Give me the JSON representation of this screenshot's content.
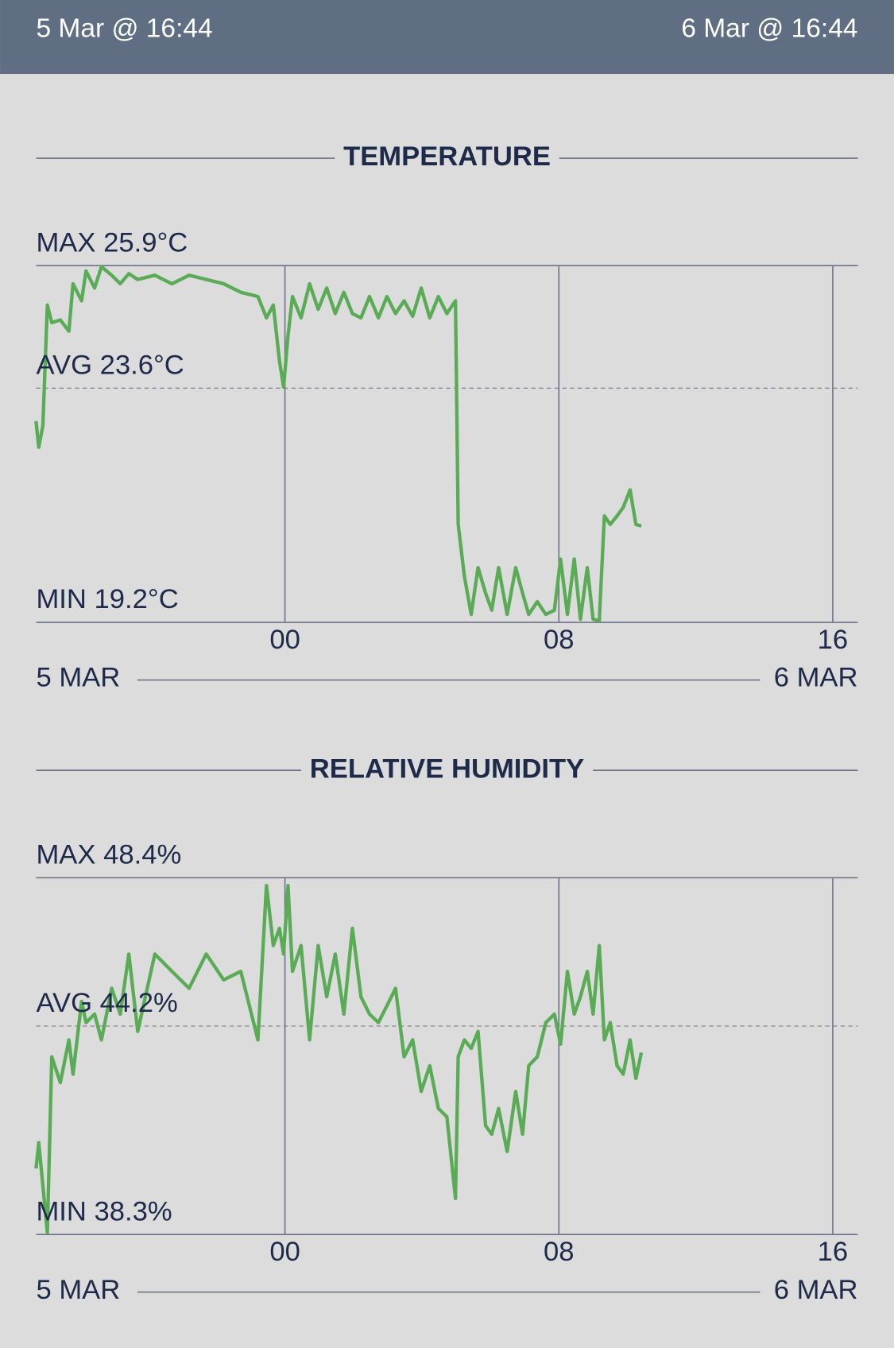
{
  "header": {
    "start": "5 Mar @ 16:44",
    "end": "6 Mar @ 16:44"
  },
  "chart_data": [
    {
      "type": "line",
      "title": "TEMPERATURE",
      "x": [
        16.73,
        16.81,
        16.93,
        17.06,
        17.19,
        17.44,
        17.69,
        17.81,
        18.06,
        18.19,
        18.44,
        18.64,
        18.94,
        19.19,
        19.44,
        19.7,
        20.2,
        20.7,
        21.2,
        21.7,
        22.21,
        22.71,
        23.21,
        23.46,
        23.66,
        23.84,
        23.96,
        24.09,
        24.22,
        24.47,
        24.72,
        24.97,
        25.22,
        25.47,
        25.72,
        25.97,
        26.22,
        26.47,
        26.73,
        26.98,
        27.23,
        27.48,
        27.73,
        27.98,
        28.23,
        28.48,
        28.73,
        28.98,
        29.06,
        29.24,
        29.44,
        29.64,
        29.86,
        30.04,
        30.24,
        30.49,
        30.74,
        30.94,
        31.12,
        31.37,
        31.62,
        31.87,
        32.05,
        32.25,
        32.45,
        32.63,
        32.83,
        33.0,
        33.18,
        33.33,
        33.5,
        33.7,
        33.88,
        34.08,
        34.25,
        34.41
      ],
      "xlim": [
        16.733,
        40.733
      ],
      "xticks": [
        {
          "value": 24,
          "label": "00"
        },
        {
          "value": 32,
          "label": "08"
        },
        {
          "value": 40,
          "label": "16"
        }
      ],
      "ylim": [
        19.2,
        25.9
      ],
      "yticks": [
        {
          "value": 19.2,
          "label": "MIN 19.2°C"
        },
        {
          "value": 23.6,
          "label": "AVG 23.6°C"
        },
        {
          "value": 25.9,
          "label": "MAX 25.9°C"
        }
      ],
      "series": [
        {
          "color": "#5aab55",
          "values": [
            22.98,
            22.49,
            22.9,
            25.16,
            24.83,
            24.88,
            24.67,
            25.56,
            25.24,
            25.8,
            25.48,
            25.88,
            25.72,
            25.56,
            25.75,
            25.64,
            25.72,
            25.56,
            25.72,
            25.64,
            25.56,
            25.4,
            25.32,
            24.92,
            25.16,
            24.11,
            23.62,
            24.59,
            25.32,
            24.92,
            25.56,
            25.08,
            25.48,
            25.0,
            25.4,
            25.0,
            24.92,
            25.32,
            24.92,
            25.32,
            25.0,
            25.24,
            24.95,
            25.48,
            24.92,
            25.32,
            25.0,
            25.24,
            21.04,
            20.07,
            19.35,
            20.23,
            19.75,
            19.43,
            20.23,
            19.35,
            20.23,
            19.75,
            19.35,
            19.59,
            19.35,
            19.43,
            20.39,
            19.35,
            20.39,
            19.26,
            20.23,
            19.26,
            19.23,
            21.2,
            21.04,
            21.2,
            21.36,
            21.69,
            21.04,
            21.01
          ]
        }
      ],
      "start_label": "5 MAR",
      "end_label": "6 MAR"
    },
    {
      "type": "line",
      "title": "RELATIVE HUMIDITY",
      "x": [
        16.73,
        16.81,
        16.93,
        17.06,
        17.19,
        17.44,
        17.69,
        17.81,
        18.06,
        18.19,
        18.44,
        18.64,
        18.94,
        19.19,
        19.44,
        19.7,
        20.2,
        20.7,
        21.2,
        21.7,
        22.21,
        22.71,
        23.21,
        23.46,
        23.66,
        23.84,
        23.96,
        24.09,
        24.22,
        24.47,
        24.72,
        24.97,
        25.22,
        25.47,
        25.72,
        25.97,
        26.22,
        26.47,
        26.73,
        26.98,
        27.23,
        27.48,
        27.73,
        27.98,
        28.23,
        28.48,
        28.73,
        28.98,
        29.06,
        29.24,
        29.44,
        29.64,
        29.86,
        30.04,
        30.24,
        30.49,
        30.74,
        30.94,
        31.12,
        31.37,
        31.62,
        31.87,
        32.05,
        32.25,
        32.45,
        32.63,
        32.83,
        33.0,
        33.18,
        33.33,
        33.5,
        33.7,
        33.88,
        34.08,
        34.25,
        34.41
      ],
      "xlim": [
        16.733,
        40.733
      ],
      "xticks": [
        {
          "value": 24,
          "label": "00"
        },
        {
          "value": 32,
          "label": "08"
        },
        {
          "value": 40,
          "label": "16"
        }
      ],
      "ylim": [
        38.3,
        48.4
      ],
      "yticks": [
        {
          "value": 38.3,
          "label": "MIN 38.3%"
        },
        {
          "value": 44.2,
          "label": "AVG 44.2%"
        },
        {
          "value": 48.4,
          "label": "MAX 48.4%"
        }
      ],
      "series": [
        {
          "color": "#5aab55",
          "values": [
            40.17,
            40.9,
            39.68,
            38.35,
            43.33,
            42.6,
            43.81,
            42.84,
            44.9,
            44.3,
            44.54,
            43.81,
            45.27,
            44.54,
            46.24,
            44.05,
            46.24,
            45.75,
            45.27,
            46.24,
            45.51,
            45.75,
            43.81,
            48.18,
            46.48,
            46.97,
            46.24,
            48.18,
            45.75,
            46.48,
            43.81,
            46.48,
            45.03,
            46.24,
            44.54,
            46.97,
            45.03,
            44.54,
            44.3,
            44.78,
            45.27,
            43.33,
            43.81,
            42.35,
            43.08,
            41.87,
            41.63,
            39.32,
            43.33,
            43.81,
            43.57,
            44.05,
            41.38,
            41.14,
            41.87,
            40.65,
            42.35,
            41.14,
            43.08,
            43.33,
            44.3,
            44.54,
            43.69,
            45.75,
            44.54,
            45.03,
            45.75,
            44.54,
            46.48,
            43.81,
            44.3,
            43.08,
            42.84,
            43.81,
            42.72,
            43.45
          ]
        }
      ],
      "start_label": "5 MAR",
      "end_label": "6 MAR"
    }
  ]
}
